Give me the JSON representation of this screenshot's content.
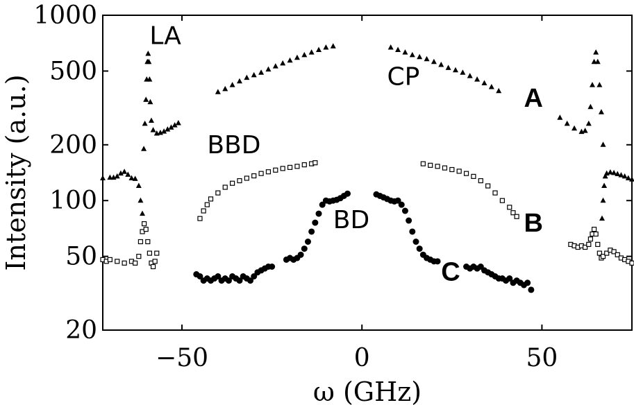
{
  "chart_data": {
    "type": "scatter",
    "xlabel": "ω (GHz)",
    "ylabel": "Intensity (a.u.)",
    "xlim": [
      -72,
      75
    ],
    "ylim": [
      20,
      1000
    ],
    "y_scale": "log",
    "x_ticks": [
      {
        "value": -50,
        "label": "−50"
      },
      {
        "value": 0,
        "label": "0"
      },
      {
        "value": 50,
        "label": "50"
      }
    ],
    "y_ticks": [
      {
        "value": 20,
        "label": "20"
      },
      {
        "value": 50,
        "label": "50"
      },
      {
        "value": 100,
        "label": "100"
      },
      {
        "value": 200,
        "label": "200"
      },
      {
        "value": 500,
        "label": "500"
      },
      {
        "value": 1000,
        "label": "1000"
      }
    ],
    "grid": false,
    "annotations": [
      {
        "text": "LA",
        "x": -59,
        "y": 700,
        "style": "normal"
      },
      {
        "text": "CP",
        "x": 7,
        "y": 420,
        "style": "normal"
      },
      {
        "text": "BBD",
        "x": -43,
        "y": 180,
        "style": "normal"
      },
      {
        "text": "BD",
        "x": -8,
        "y": 71,
        "style": "normal"
      },
      {
        "text": "A",
        "x": 45,
        "y": 320,
        "style": "bold"
      },
      {
        "text": "B",
        "x": 45,
        "y": 68,
        "style": "bold"
      },
      {
        "text": "C",
        "x": 22,
        "y": 37,
        "style": "bold"
      }
    ],
    "series": [
      {
        "marker": "triangle",
        "points": [
          [
            -72,
            132
          ],
          [
            -70,
            133
          ],
          [
            -69,
            133
          ],
          [
            -68,
            135
          ],
          [
            -67,
            140
          ],
          [
            -66,
            143
          ],
          [
            -65,
            138
          ],
          [
            -64,
            132
          ],
          [
            -63,
            131
          ],
          [
            -62,
            120
          ],
          [
            -61.5,
            100
          ],
          [
            -61,
            85
          ],
          [
            -60.6,
            190
          ],
          [
            -60.3,
            260
          ],
          [
            -60,
            350
          ],
          [
            -59.8,
            450
          ],
          [
            -59.6,
            560
          ],
          [
            -59.4,
            620
          ],
          [
            -59.2,
            560
          ],
          [
            -59,
            450
          ],
          [
            -58.8,
            340
          ],
          [
            -58.5,
            270
          ],
          [
            -58,
            240
          ],
          [
            -57,
            230
          ],
          [
            -56,
            232
          ],
          [
            -55,
            236
          ],
          [
            -54,
            242
          ],
          [
            -53,
            248
          ],
          [
            -52,
            255
          ],
          [
            -51,
            262
          ],
          [
            -40,
            385
          ],
          [
            -38,
            400
          ],
          [
            -36,
            420
          ],
          [
            -34,
            440
          ],
          [
            -32,
            460
          ],
          [
            -30,
            475
          ],
          [
            -28,
            490
          ],
          [
            -26,
            510
          ],
          [
            -24,
            530
          ],
          [
            -22,
            550
          ],
          [
            -20,
            570
          ],
          [
            -18,
            590
          ],
          [
            -16,
            610
          ],
          [
            -14,
            630
          ],
          [
            -12,
            650
          ],
          [
            -10,
            670
          ],
          [
            -8,
            680
          ],
          [
            8,
            670
          ],
          [
            10,
            650
          ],
          [
            12,
            630
          ],
          [
            14,
            610
          ],
          [
            16,
            595
          ],
          [
            18,
            580
          ],
          [
            20,
            560
          ],
          [
            22,
            540
          ],
          [
            24,
            520
          ],
          [
            26,
            505
          ],
          [
            28,
            490
          ],
          [
            30,
            470
          ],
          [
            32,
            450
          ],
          [
            34,
            430
          ],
          [
            36,
            410
          ],
          [
            38,
            390
          ],
          [
            55,
            280
          ],
          [
            57,
            260
          ],
          [
            59,
            245
          ],
          [
            61,
            235
          ],
          [
            62,
            238
          ],
          [
            63,
            260
          ],
          [
            63.5,
            320
          ],
          [
            64,
            420
          ],
          [
            64.5,
            560
          ],
          [
            65,
            630
          ],
          [
            65.5,
            560
          ],
          [
            66,
            420
          ],
          [
            66.5,
            300
          ],
          [
            67,
            200
          ],
          [
            66.7,
            80
          ],
          [
            67,
            100
          ],
          [
            67.3,
            120
          ],
          [
            67.6,
            135
          ],
          [
            68,
            140
          ],
          [
            69,
            142
          ],
          [
            70,
            141
          ],
          [
            71,
            139
          ],
          [
            72,
            137
          ],
          [
            73,
            135
          ],
          [
            74,
            132
          ],
          [
            75,
            130
          ]
        ]
      },
      {
        "marker": "square",
        "points": [
          [
            -72,
            48
          ],
          [
            -71,
            47
          ],
          [
            -70,
            48
          ],
          [
            -68,
            47
          ],
          [
            -66,
            46
          ],
          [
            -64,
            47
          ],
          [
            -63,
            46
          ],
          [
            -62,
            50
          ],
          [
            -61.5,
            60
          ],
          [
            -61,
            68
          ],
          [
            -60.5,
            75
          ],
          [
            -60,
            70
          ],
          [
            -59.5,
            60
          ],
          [
            -59,
            52
          ],
          [
            -58.5,
            46
          ],
          [
            -58,
            44
          ],
          [
            -57.5,
            47
          ],
          [
            -57,
            52
          ],
          [
            -45,
            80
          ],
          [
            -44,
            88
          ],
          [
            -43,
            95
          ],
          [
            -42,
            102
          ],
          [
            -40,
            110
          ],
          [
            -38,
            118
          ],
          [
            -36,
            124
          ],
          [
            -34,
            128
          ],
          [
            -32,
            132
          ],
          [
            -30,
            136
          ],
          [
            -28,
            140
          ],
          [
            -26,
            143
          ],
          [
            -24,
            146
          ],
          [
            -22,
            149
          ],
          [
            -20,
            151
          ],
          [
            -18,
            153
          ],
          [
            -16,
            156
          ],
          [
            -14,
            158
          ],
          [
            -13,
            160
          ],
          [
            17,
            158
          ],
          [
            19,
            155
          ],
          [
            21,
            153
          ],
          [
            23,
            150
          ],
          [
            25,
            147
          ],
          [
            27,
            144
          ],
          [
            29,
            140
          ],
          [
            31,
            135
          ],
          [
            33,
            128
          ],
          [
            35,
            120
          ],
          [
            37,
            110
          ],
          [
            39,
            100
          ],
          [
            41,
            92
          ],
          [
            42,
            86
          ],
          [
            43,
            82
          ],
          [
            58,
            58
          ],
          [
            59,
            57
          ],
          [
            60,
            56
          ],
          [
            61,
            57
          ],
          [
            62,
            56
          ],
          [
            63,
            58
          ],
          [
            63.5,
            62
          ],
          [
            64,
            66
          ],
          [
            64.5,
            70
          ],
          [
            65,
            66
          ],
          [
            65.5,
            58
          ],
          [
            66,
            52
          ],
          [
            66.5,
            49
          ],
          [
            67,
            50
          ],
          [
            68,
            52
          ],
          [
            69,
            54
          ],
          [
            70,
            53
          ],
          [
            71,
            51
          ],
          [
            72,
            49
          ],
          [
            73,
            48
          ],
          [
            74,
            47
          ],
          [
            75,
            46
          ]
        ]
      },
      {
        "marker": "dot",
        "points": [
          [
            -46,
            40
          ],
          [
            -45,
            39
          ],
          [
            -44,
            37
          ],
          [
            -43,
            38
          ],
          [
            -42,
            37
          ],
          [
            -41,
            38
          ],
          [
            -40,
            39
          ],
          [
            -39,
            37
          ],
          [
            -38,
            38
          ],
          [
            -37,
            37
          ],
          [
            -36,
            39
          ],
          [
            -35,
            38
          ],
          [
            -34,
            37
          ],
          [
            -33,
            39
          ],
          [
            -32,
            38
          ],
          [
            -31,
            37
          ],
          [
            -30,
            39
          ],
          [
            -29,
            41
          ],
          [
            -28,
            42
          ],
          [
            -27,
            43
          ],
          [
            -26,
            44
          ],
          [
            -25,
            44
          ],
          [
            -21,
            48
          ],
          [
            -20,
            49
          ],
          [
            -19,
            48
          ],
          [
            -18,
            49
          ],
          [
            -17,
            51
          ],
          [
            -16,
            55
          ],
          [
            -15,
            60
          ],
          [
            -14,
            68
          ],
          [
            -13,
            76
          ],
          [
            -12,
            85
          ],
          [
            -11,
            95
          ],
          [
            -10,
            100
          ],
          [
            -9,
            99
          ],
          [
            -8,
            100
          ],
          [
            -7,
            101
          ],
          [
            -6,
            103
          ],
          [
            -5,
            106
          ],
          [
            -4,
            109
          ],
          [
            4,
            108
          ],
          [
            5,
            106
          ],
          [
            6,
            104
          ],
          [
            7,
            102
          ],
          [
            8,
            100
          ],
          [
            9,
            99
          ],
          [
            10,
            100
          ],
          [
            11,
            95
          ],
          [
            12,
            88
          ],
          [
            13,
            78
          ],
          [
            14,
            68
          ],
          [
            15,
            60
          ],
          [
            16,
            55
          ],
          [
            17,
            51
          ],
          [
            18,
            49
          ],
          [
            19,
            48
          ],
          [
            20,
            47
          ],
          [
            21,
            47
          ],
          [
            29,
            44
          ],
          [
            30,
            43
          ],
          [
            31,
            44
          ],
          [
            32,
            43
          ],
          [
            33,
            44
          ],
          [
            34,
            42
          ],
          [
            35,
            41
          ],
          [
            36,
            40
          ],
          [
            37,
            39
          ],
          [
            38,
            38
          ],
          [
            39,
            38
          ],
          [
            40,
            37
          ],
          [
            41,
            38
          ],
          [
            42,
            36
          ],
          [
            43,
            37
          ],
          [
            44,
            36
          ],
          [
            45,
            35
          ],
          [
            46,
            36
          ],
          [
            47,
            33
          ]
        ]
      }
    ]
  }
}
